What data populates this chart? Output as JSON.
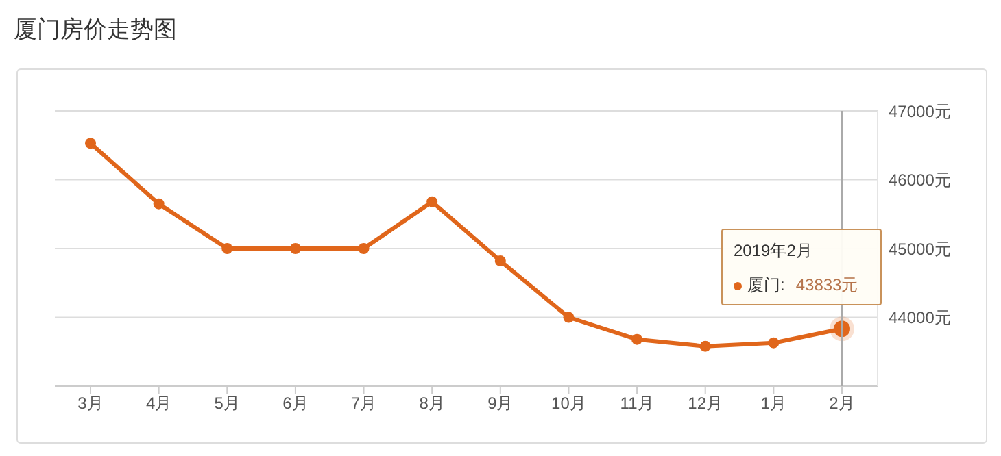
{
  "chart_data": {
    "type": "line",
    "title": "厦门房价走势图",
    "categories": [
      "3月",
      "4月",
      "5月",
      "6月",
      "7月",
      "8月",
      "9月",
      "10月",
      "11月",
      "12月",
      "1月",
      "2月"
    ],
    "series": [
      {
        "name": "厦门:",
        "color": "#e0661b",
        "values": [
          46530,
          45650,
          45000,
          45000,
          45000,
          45680,
          44820,
          44000,
          43680,
          43580,
          43630,
          43833
        ],
        "value_labels": [
          null,
          null,
          null,
          null,
          null,
          null,
          null,
          null,
          null,
          null,
          null,
          "43833元"
        ]
      }
    ],
    "ylim": [
      43000,
      47000
    ],
    "yticks": [
      {
        "value": 43000,
        "label": null
      },
      {
        "value": 44000,
        "label": "44000元"
      },
      {
        "value": 45000,
        "label": "45000元"
      },
      {
        "value": 46000,
        "label": "46000元"
      },
      {
        "value": 47000,
        "label": "47000元"
      }
    ],
    "grid": "y",
    "legend": "right",
    "marker": "circle",
    "line_style": "solid",
    "ref_lines": [
      {
        "axis": "x",
        "value": "2月",
        "color": "#aaaaaa"
      }
    ],
    "annotations": [
      "2019年2月"
    ]
  }
}
